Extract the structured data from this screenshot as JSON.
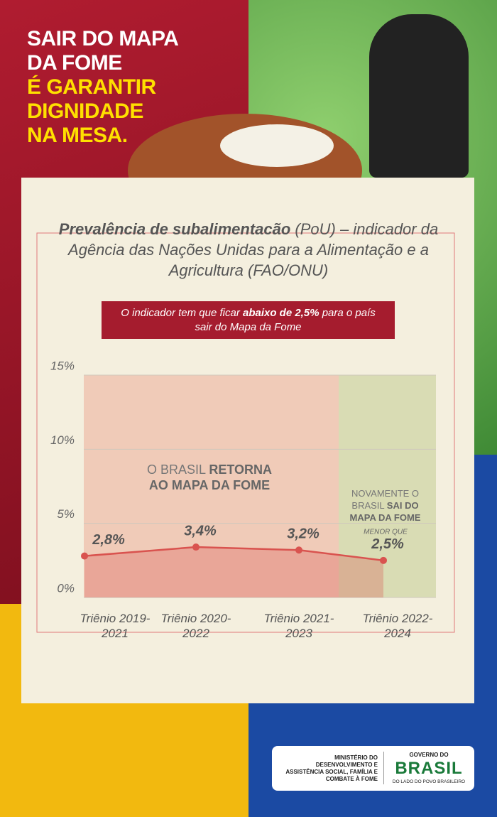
{
  "header": {
    "lines": [
      "SAIR DO MAPA",
      "DA FOME"
    ],
    "highlight": [
      "É GARANTIR",
      "DIGNIDADE",
      "NA MESA."
    ]
  },
  "chart_data": {
    "type": "line",
    "title": "Prevalência de subalimentacão",
    "subtitle": "(PoU) – indicador da Agência das Nações Unidas para a Alimentação e a Agricultura (FAO/ONU)",
    "note": [
      "O indicador tem que ficar ",
      "abaixo de 2,5%",
      " para o país sair do Mapa da Fome"
    ],
    "categories": [
      "Triênio 2019-2021",
      "Triênio 2020-2022",
      "Triênio 2021-2023",
      "Triênio 2022-2024"
    ],
    "series": [
      {
        "color": "#d9534f",
        "values": [
          2.8,
          3.4,
          3.2,
          2.5
        ],
        "value_labels": [
          "2,8%",
          "3,4%",
          "3,2%",
          "2,5%"
        ]
      }
    ],
    "annotation": "MENOR QUE",
    "ylim": [
      0,
      15
    ],
    "yticks": [
      {
        "value": 0,
        "label": "0%"
      },
      {
        "value": 5,
        "label": "5%"
      },
      {
        "value": 10,
        "label": "10%"
      },
      {
        "value": 15,
        "label": "15%"
      }
    ],
    "grid": true,
    "regions": [
      {
        "text": "O BRASIL",
        "emphasis": "RETORNA AO MAPA DA FOME",
        "color": "#f0cbb8"
      },
      {
        "text": "NOVAMENTE O BRASIL",
        "emphasis": "SAI DO MAPA DA FOME",
        "color": "#d9dcb4"
      }
    ]
  },
  "footer": {
    "ministry": "MINISTÉRIO DO DESENVOLVIMENTO E ASSISTÊNCIA SOCIAL, FAMÍLIA E COMBATE À FOME",
    "gov": "GOVERNO DO",
    "brand": "BRASIL",
    "slogan": "DO LADO DO POVO BRASILEIRO"
  }
}
